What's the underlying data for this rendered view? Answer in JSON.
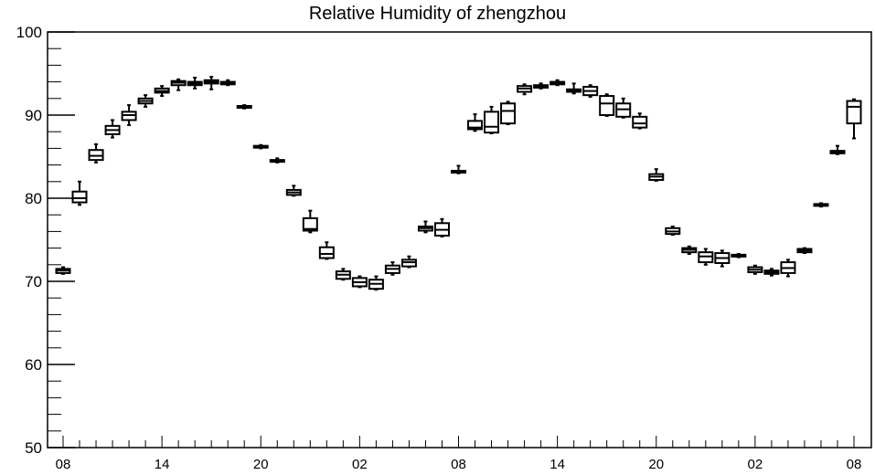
{
  "chart_data": {
    "type": "boxplot",
    "title": "Relative Humidity of zhengzhou",
    "xlabel": "",
    "ylabel": "",
    "ylim": [
      50,
      100
    ],
    "yticks": [
      50,
      60,
      70,
      80,
      90,
      100
    ],
    "xtick_labels": [
      "08",
      "14",
      "20",
      "02",
      "08",
      "14",
      "20",
      "02",
      "08"
    ],
    "xtick_hours": [
      0,
      6,
      12,
      18,
      24,
      30,
      36,
      42,
      48
    ],
    "grid": false,
    "boxes": [
      {
        "h": 0,
        "min": 70.9,
        "q1": 71.0,
        "med": 71.3,
        "q3": 71.5,
        "max": 71.7
      },
      {
        "h": 1,
        "min": 79.2,
        "q1": 79.5,
        "med": 80.0,
        "q3": 80.8,
        "max": 82.0
      },
      {
        "h": 2,
        "min": 84.3,
        "q1": 84.6,
        "med": 85.1,
        "q3": 85.8,
        "max": 86.5
      },
      {
        "h": 3,
        "min": 87.3,
        "q1": 87.7,
        "med": 88.2,
        "q3": 88.7,
        "max": 89.4
      },
      {
        "h": 4,
        "min": 88.8,
        "q1": 89.4,
        "med": 90.0,
        "q3": 90.4,
        "max": 91.2
      },
      {
        "h": 5,
        "min": 91.0,
        "q1": 91.4,
        "med": 91.7,
        "q3": 92.0,
        "max": 92.4
      },
      {
        "h": 6,
        "min": 92.3,
        "q1": 92.7,
        "med": 92.9,
        "q3": 93.2,
        "max": 93.5
      },
      {
        "h": 7,
        "min": 93.0,
        "q1": 93.6,
        "med": 93.9,
        "q3": 94.1,
        "max": 94.3
      },
      {
        "h": 8,
        "min": 93.2,
        "q1": 93.6,
        "med": 93.8,
        "q3": 94.0,
        "max": 94.5
      },
      {
        "h": 9,
        "min": 93.1,
        "q1": 93.8,
        "med": 94.0,
        "q3": 94.2,
        "max": 94.6
      },
      {
        "h": 10,
        "min": 93.6,
        "q1": 93.7,
        "med": 93.9,
        "q3": 94.0,
        "max": 94.2
      },
      {
        "h": 11,
        "min": 90.8,
        "q1": 90.9,
        "med": 91.0,
        "q3": 91.1,
        "max": 91.2
      },
      {
        "h": 12,
        "min": 86.0,
        "q1": 86.1,
        "med": 86.2,
        "q3": 86.3,
        "max": 86.4
      },
      {
        "h": 13,
        "min": 84.3,
        "q1": 84.4,
        "med": 84.5,
        "q3": 84.6,
        "max": 84.8
      },
      {
        "h": 14,
        "min": 80.3,
        "q1": 80.4,
        "med": 80.7,
        "q3": 81.0,
        "max": 81.5
      },
      {
        "h": 15,
        "min": 75.9,
        "q1": 76.1,
        "med": 76.3,
        "q3": 77.6,
        "max": 78.5
      },
      {
        "h": 16,
        "min": 72.7,
        "q1": 72.8,
        "med": 73.3,
        "q3": 74.1,
        "max": 74.7
      },
      {
        "h": 17,
        "min": 70.2,
        "q1": 70.3,
        "med": 70.8,
        "q3": 71.2,
        "max": 71.5
      },
      {
        "h": 18,
        "min": 69.3,
        "q1": 69.4,
        "med": 69.9,
        "q3": 70.4,
        "max": 70.6
      },
      {
        "h": 19,
        "min": 69.0,
        "q1": 69.1,
        "med": 69.7,
        "q3": 70.2,
        "max": 70.6
      },
      {
        "h": 20,
        "min": 70.8,
        "q1": 71.0,
        "med": 71.5,
        "q3": 71.9,
        "max": 72.3
      },
      {
        "h": 21,
        "min": 71.7,
        "q1": 71.8,
        "med": 72.3,
        "q3": 72.6,
        "max": 73.0
      },
      {
        "h": 22,
        "min": 75.9,
        "q1": 76.1,
        "med": 76.4,
        "q3": 76.6,
        "max": 77.2
      },
      {
        "h": 23,
        "min": 75.4,
        "q1": 75.5,
        "med": 76.2,
        "q3": 77.0,
        "max": 77.5
      },
      {
        "h": 24,
        "min": 83.0,
        "q1": 83.1,
        "med": 83.2,
        "q3": 83.3,
        "max": 83.9
      },
      {
        "h": 25,
        "min": 88.1,
        "q1": 88.3,
        "med": 88.5,
        "q3": 89.3,
        "max": 90.1
      },
      {
        "h": 26,
        "min": 87.8,
        "q1": 87.9,
        "med": 88.6,
        "q3": 90.4,
        "max": 91.0
      },
      {
        "h": 27,
        "min": 88.9,
        "q1": 89.0,
        "med": 90.5,
        "q3": 91.4,
        "max": 91.6
      },
      {
        "h": 28,
        "min": 92.5,
        "q1": 92.8,
        "med": 93.2,
        "q3": 93.5,
        "max": 93.7
      },
      {
        "h": 29,
        "min": 93.2,
        "q1": 93.3,
        "med": 93.5,
        "q3": 93.6,
        "max": 93.8
      },
      {
        "h": 30,
        "min": 93.6,
        "q1": 93.7,
        "med": 93.8,
        "q3": 94.0,
        "max": 94.2
      },
      {
        "h": 31,
        "min": 92.6,
        "q1": 92.8,
        "med": 93.0,
        "q3": 93.1,
        "max": 93.8
      },
      {
        "h": 32,
        "min": 92.2,
        "q1": 92.4,
        "med": 92.9,
        "q3": 93.4,
        "max": 93.6
      },
      {
        "h": 33,
        "min": 89.9,
        "q1": 90.0,
        "med": 91.4,
        "q3": 92.3,
        "max": 92.5
      },
      {
        "h": 34,
        "min": 89.7,
        "q1": 89.8,
        "med": 90.7,
        "q3": 91.4,
        "max": 92.0
      },
      {
        "h": 35,
        "min": 88.4,
        "q1": 88.5,
        "med": 89.0,
        "q3": 89.8,
        "max": 90.2
      },
      {
        "h": 36,
        "min": 82.1,
        "q1": 82.2,
        "med": 82.6,
        "q3": 82.9,
        "max": 83.5
      },
      {
        "h": 37,
        "min": 75.6,
        "q1": 75.7,
        "med": 76.0,
        "q3": 76.4,
        "max": 76.6
      },
      {
        "h": 38,
        "min": 73.3,
        "q1": 73.5,
        "med": 73.8,
        "q3": 74.0,
        "max": 74.2
      },
      {
        "h": 39,
        "min": 72.0,
        "q1": 72.3,
        "med": 73.0,
        "q3": 73.5,
        "max": 73.9
      },
      {
        "h": 40,
        "min": 71.8,
        "q1": 72.2,
        "med": 72.8,
        "q3": 73.4,
        "max": 73.7
      },
      {
        "h": 41,
        "min": 72.9,
        "q1": 73.0,
        "med": 73.1,
        "q3": 73.2,
        "max": 73.3
      },
      {
        "h": 42,
        "min": 70.9,
        "q1": 71.1,
        "med": 71.4,
        "q3": 71.7,
        "max": 71.9
      },
      {
        "h": 43,
        "min": 70.7,
        "q1": 70.9,
        "med": 71.1,
        "q3": 71.3,
        "max": 71.5
      },
      {
        "h": 44,
        "min": 70.6,
        "q1": 71.0,
        "med": 71.6,
        "q3": 72.3,
        "max": 72.6
      },
      {
        "h": 45,
        "min": 73.4,
        "q1": 73.5,
        "med": 73.7,
        "q3": 73.9,
        "max": 74.0
      },
      {
        "h": 46,
        "min": 79.0,
        "q1": 79.1,
        "med": 79.2,
        "q3": 79.3,
        "max": 79.4
      },
      {
        "h": 47,
        "min": 85.3,
        "q1": 85.4,
        "med": 85.6,
        "q3": 85.7,
        "max": 86.3
      },
      {
        "h": 48,
        "min": 87.2,
        "q1": 89.0,
        "med": 91.0,
        "q3": 91.7,
        "max": 91.9
      }
    ]
  }
}
